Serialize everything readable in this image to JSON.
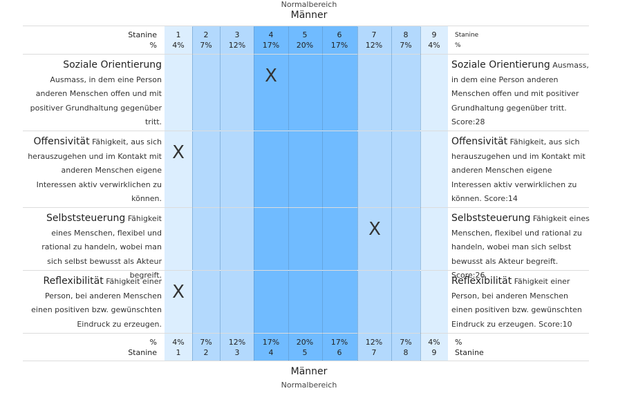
{
  "header": {
    "normalbereich": "Normalbereich",
    "group": "Männer"
  },
  "footer": {
    "group": "Männer",
    "normalbereich": "Normalbereich"
  },
  "scale": {
    "stanine_label": "Stanine",
    "percent_label": "%",
    "stanines": [
      "1",
      "2",
      "3",
      "4",
      "5",
      "6",
      "7",
      "8",
      "9"
    ],
    "percents": [
      "4%",
      "7%",
      "12%",
      "17%",
      "20%",
      "17%",
      "12%",
      "7%",
      "4%"
    ]
  },
  "dimensions": [
    {
      "title": "Soziale Orientierung",
      "text": "Ausmass, in dem eine Person anderen Menschen offen und mit positiver Grundhaltung gegenüber tritt.",
      "score_text": "Score:28",
      "stanine": 4
    },
    {
      "title": "Offensivität",
      "text": "Fähigkeit, aus sich herauszugehen und im Kontakt mit anderen Menschen eigene Interessen aktiv verwirklichen zu können.",
      "score_text": "Score:14",
      "stanine": 1
    },
    {
      "title": "Selbststeuerung",
      "text": "Fähigkeit eines Menschen, flexibel und rational zu handeln, wobei man sich selbst bewusst als Akteur begreift.",
      "score_text": "Score:26",
      "stanine": 7
    },
    {
      "title": "Reflexibilität",
      "text": "Fähigkeit einer Person, bei anderen Menschen einen positiven bzw. gewünschten Eindruck zu erzeugen.",
      "score_text": "Score:10",
      "stanine": 1
    }
  ],
  "mark_symbol": "X"
}
